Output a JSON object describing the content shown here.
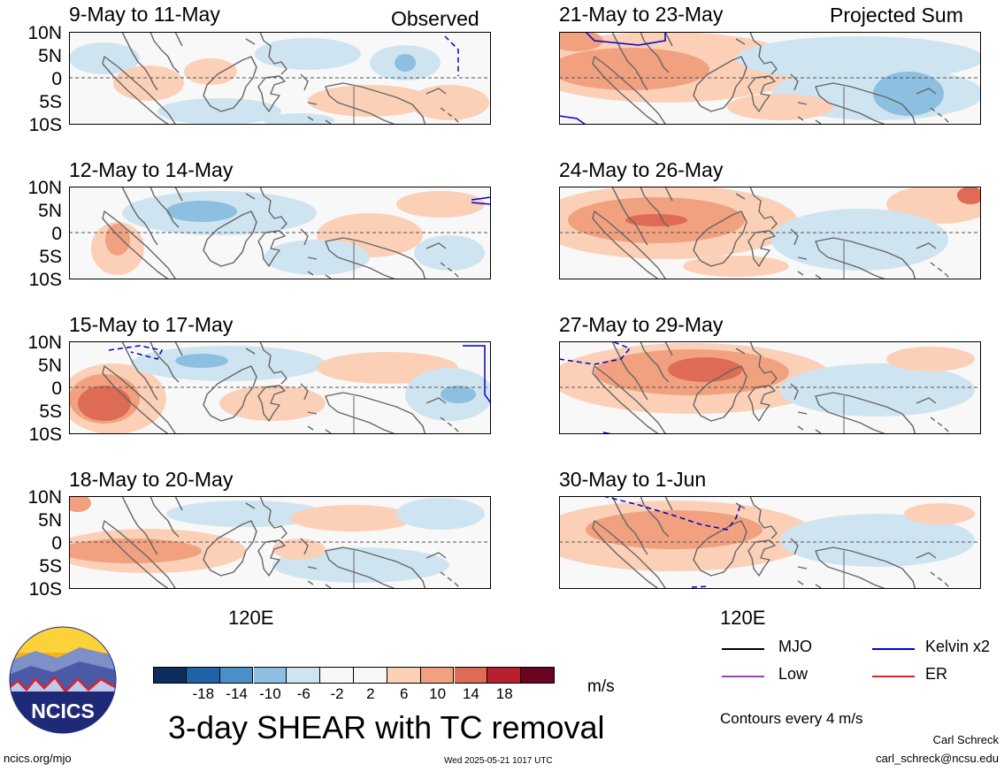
{
  "header": {
    "observed_label": "Observed",
    "projected_label": "Projected Sum"
  },
  "lat_labels": [
    "10N",
    "5N",
    "0",
    "5S",
    "10S"
  ],
  "lon_label": "120E",
  "panels": [
    {
      "title": "9-May to 11-May"
    },
    {
      "title": "12-May to 14-May"
    },
    {
      "title": "15-May to 17-May"
    },
    {
      "title": "18-May to 20-May"
    },
    {
      "title": "21-May to 23-May"
    },
    {
      "title": "24-May to 26-May"
    },
    {
      "title": "27-May to 29-May"
    },
    {
      "title": "30-May to 1-Jun"
    }
  ],
  "colorbar": {
    "colors": [
      "#0d2e5c",
      "#1f62a8",
      "#4a8fc7",
      "#8cbfe0",
      "#cfe4f1",
      "#f7f7f7",
      "#f7f7f7",
      "#fbd0b7",
      "#f1a17f",
      "#dd6b55",
      "#b8202e",
      "#6a0420"
    ],
    "tick_labels": [
      "-18",
      "-14",
      "-10",
      "-6",
      "-2",
      "2",
      "6",
      "10",
      "14",
      "18"
    ],
    "units": "m/s"
  },
  "title": "3-day SHEAR with TC removal",
  "legend": {
    "items": [
      {
        "label": "MJO",
        "color": "#000000"
      },
      {
        "label": "Kelvin x2",
        "color": "#0000cc"
      },
      {
        "label": "Low",
        "color": "#9a3fd6"
      },
      {
        "label": "ER",
        "color": "#dd2222"
      }
    ],
    "contours_note": "Contours every 4 m/s"
  },
  "footer": {
    "site": "ncics.org/mjo",
    "timestamp": "Wed 2025-05-21 1017 UTC",
    "author": "Carl Schreck",
    "email": "carl_schreck@ncsu.edu"
  },
  "logo": {
    "text": "NCICS"
  }
}
